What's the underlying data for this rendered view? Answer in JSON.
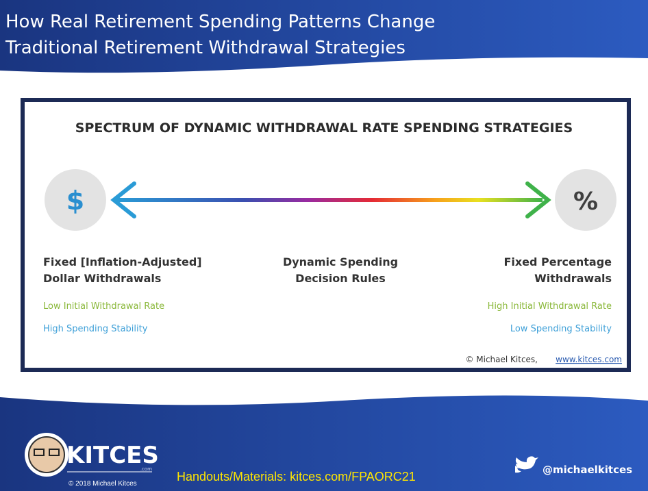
{
  "slide": {
    "title": [
      "How Real Retirement Spending Patterns Change",
      "Traditional Retirement Withdrawal Strategies"
    ],
    "figure": {
      "title": "SPECTRUM OF DYNAMIC WITHDRAWAL RATE SPENDING STRATEGIES",
      "left_icon": "$",
      "right_icon": "%",
      "left_label": [
        "Fixed [Inflation-Adjusted]",
        "Dollar Withdrawals"
      ],
      "middle_label": [
        "Dynamic Spending",
        "Decision Rules"
      ],
      "right_label": [
        "Fixed Percentage",
        "Withdrawals"
      ],
      "left_notes": [
        "Low Initial Withdrawal Rate",
        "High Spending Stability"
      ],
      "right_notes": [
        "High Initial Withdrawal Rate",
        "Low Spending Stability"
      ],
      "credit": "© Michael Kitces,",
      "credit_link": "www.kitces.com"
    },
    "footer": {
      "brand": "KITCES",
      "brand_suffix": ".com",
      "copyright": "© 2018 Michael Kitces",
      "handouts": "Handouts/Materials: kitces.com/FPAORC21",
      "twitter": "@michaelkitces"
    }
  }
}
